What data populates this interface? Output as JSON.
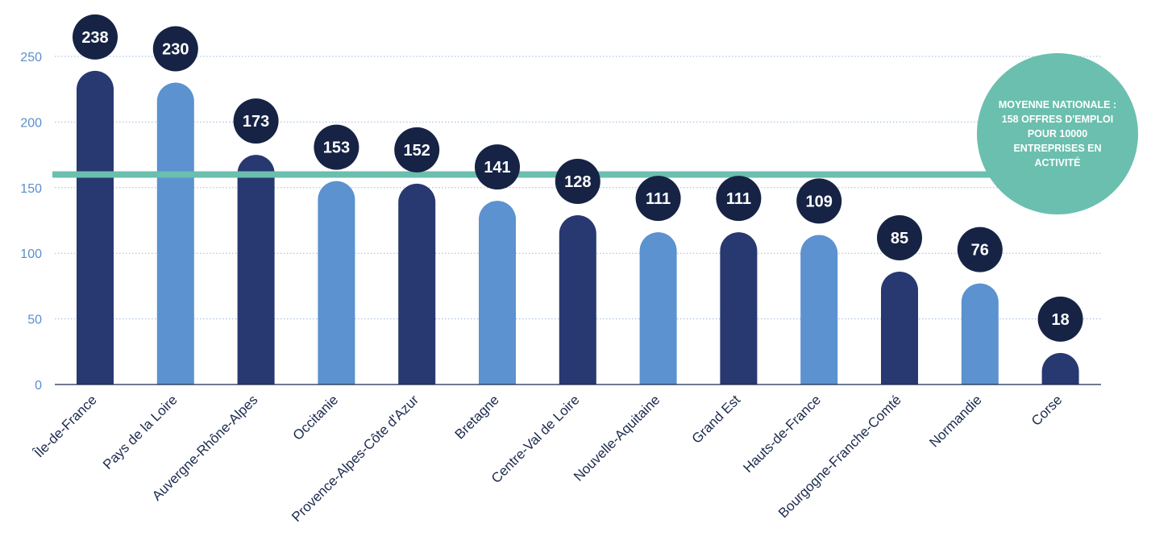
{
  "chart_data": {
    "type": "bar",
    "categories": [
      "Île-de-France",
      "Pays de la Loire",
      "Auvergne-Rhône-Alpes",
      "Occitanie",
      "Provence-Alpes-Côte d'Azur",
      "Bretagne",
      "Centre-Val de Loire",
      "Nouvelle-Aquitaine",
      "Grand Est",
      "Hauts-de-France",
      "Bourgogne-Franche-Comté",
      "Normandie",
      "Corse"
    ],
    "values": [
      238,
      230,
      173,
      153,
      152,
      141,
      128,
      111,
      111,
      109,
      85,
      76,
      18
    ],
    "bar_heights": [
      239,
      230,
      175,
      155,
      153,
      140,
      129,
      116,
      116,
      114,
      86,
      77,
      24
    ],
    "yticks": [
      0,
      50,
      100,
      150,
      200,
      250
    ],
    "ylim": [
      0,
      280
    ],
    "grid": true,
    "title": "",
    "xlabel": "",
    "ylabel": "",
    "reference_line": {
      "value": 160,
      "lines": [
        "MOYENNE NATIONALE :",
        "158 OFFRES D'EMPLOI",
        "POUR 10000",
        "ENTREPRISES EN",
        "ACTIVITÉ"
      ]
    },
    "colors": {
      "dark_bar": "#283870",
      "light_bar": "#5b92cf",
      "value_badge": "#162345",
      "reference": "#6bbfae",
      "grid": "#9ab8dc",
      "axis": "#1b2a4e",
      "tick_text": "#5b8fca"
    }
  }
}
